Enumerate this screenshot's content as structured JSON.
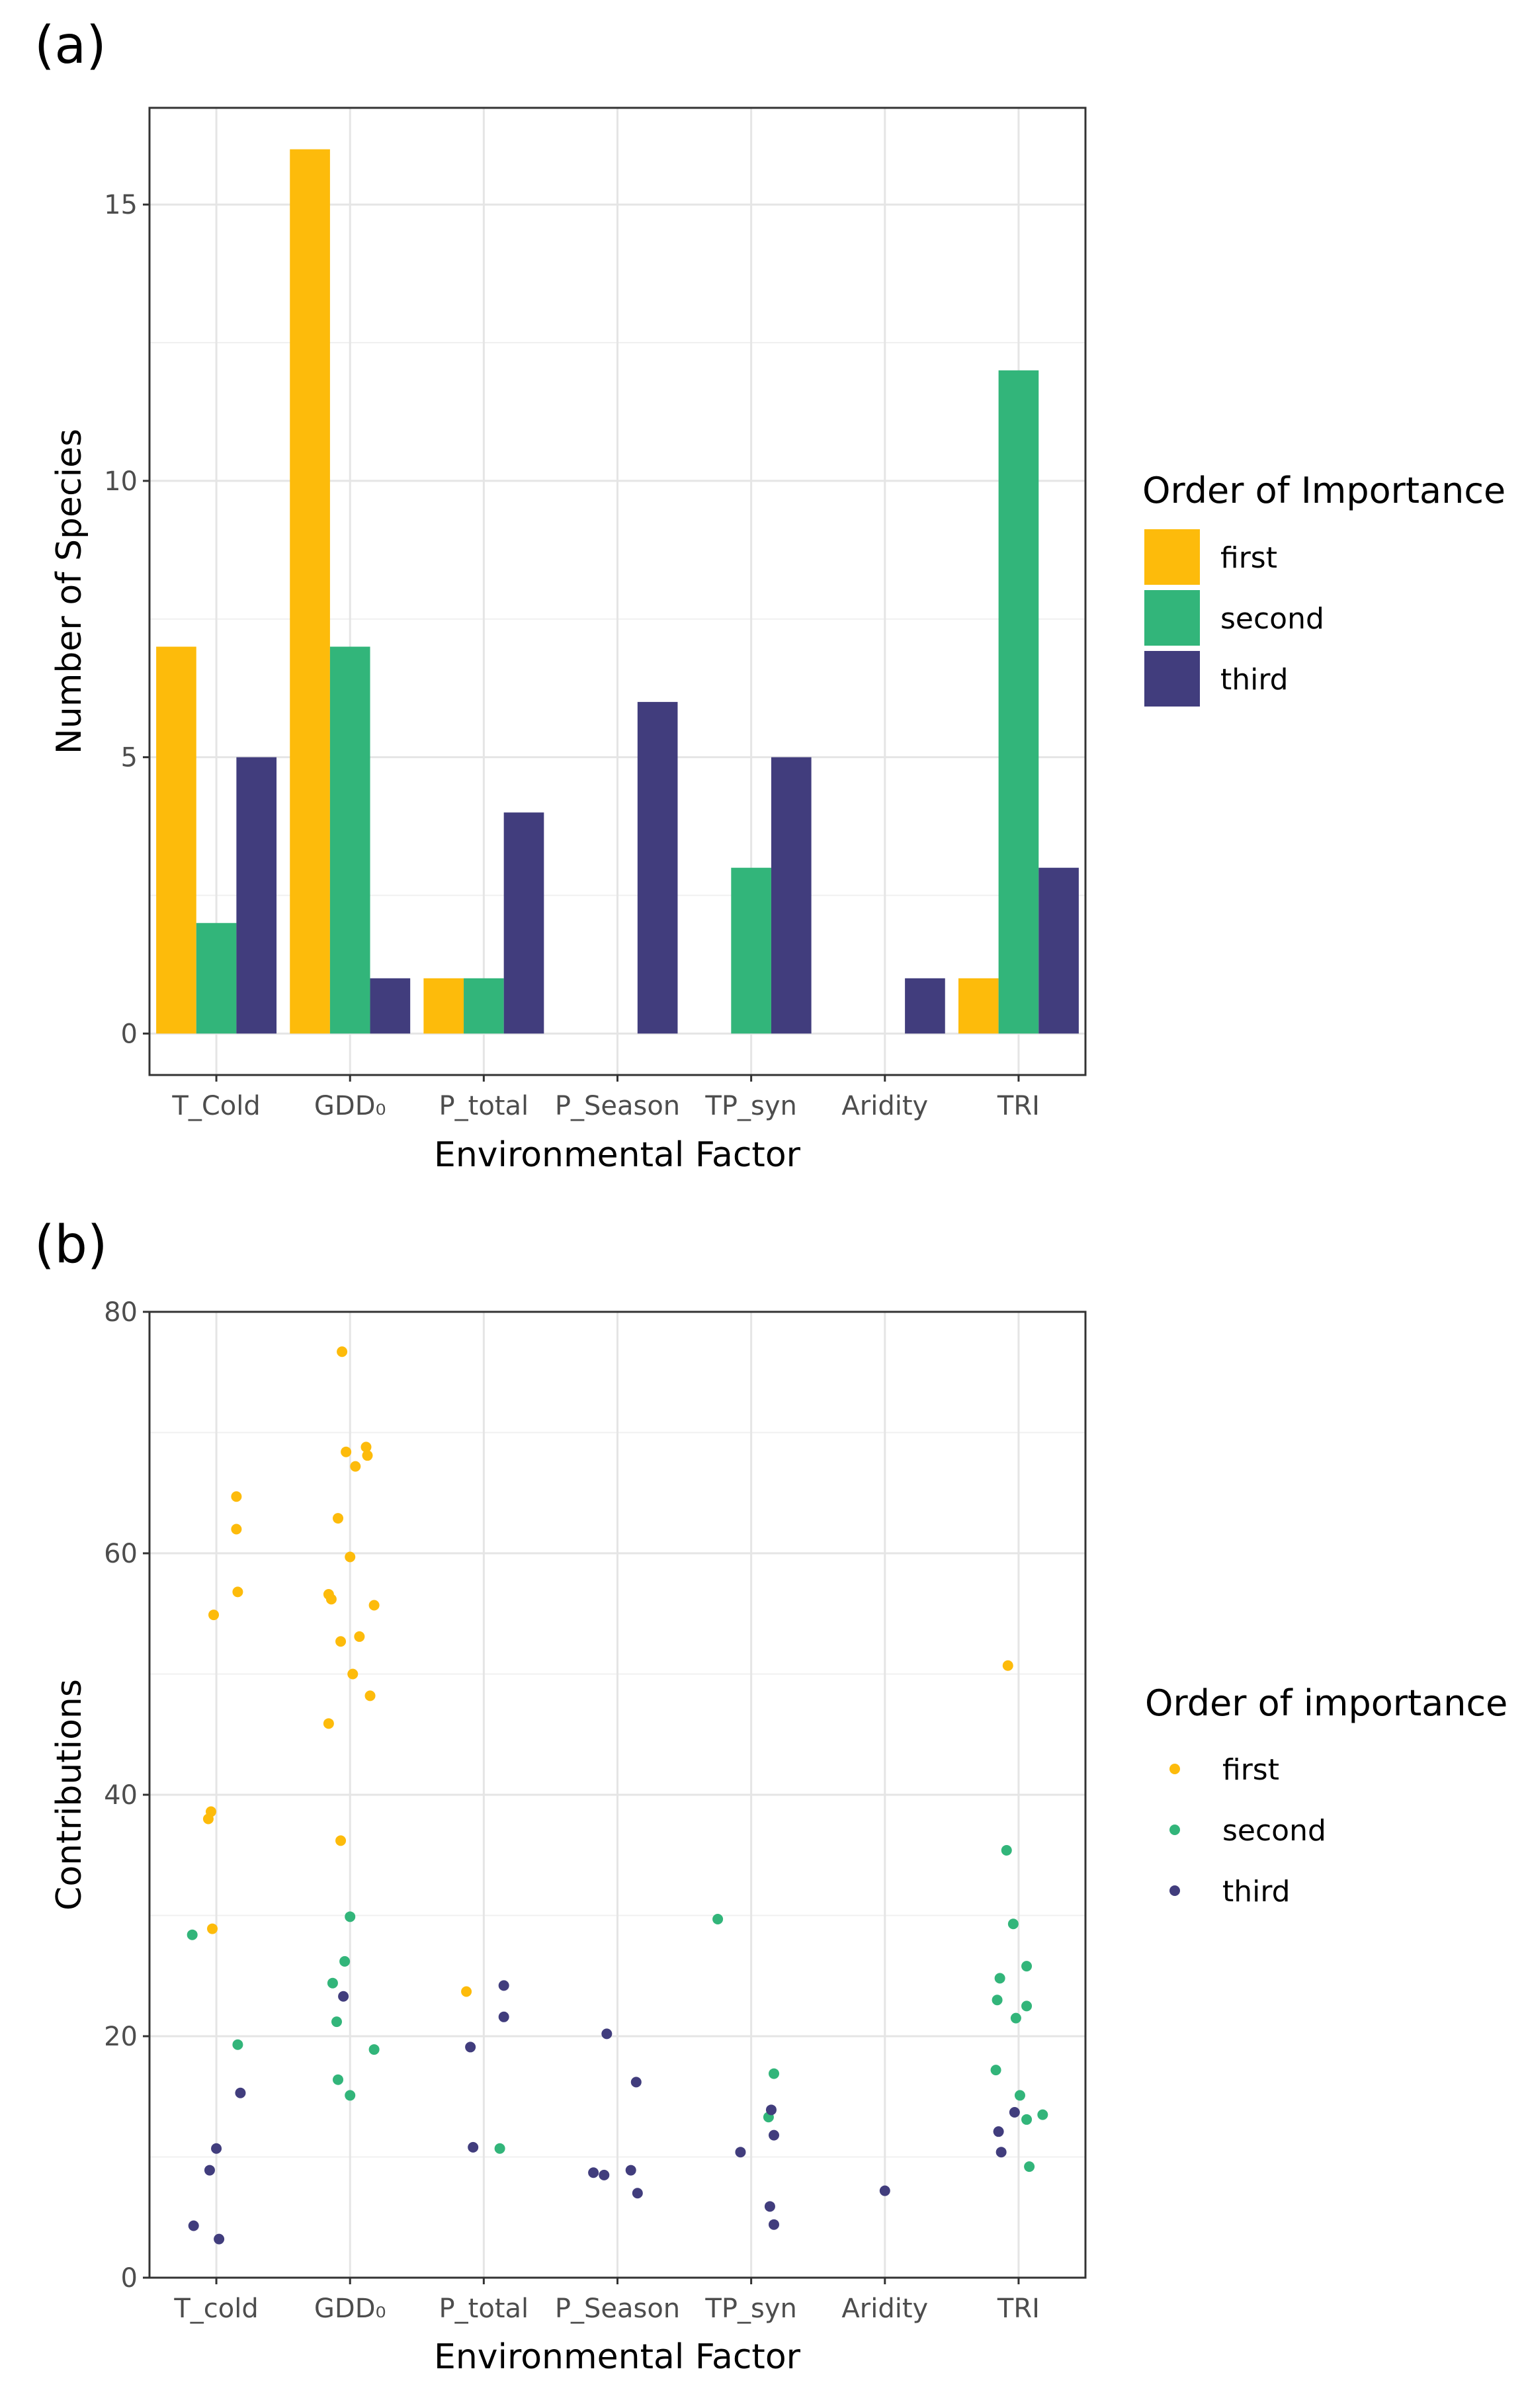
{
  "colors": {
    "first": "#FDBB0B",
    "second": "#32B57A",
    "third": "#413D7D"
  },
  "panel_a": {
    "label": "(a)",
    "legend_title": "Order of Importance",
    "legend_entries": [
      "first",
      "second",
      "third"
    ]
  },
  "panel_b": {
    "label": "(b)",
    "legend_title": "Order of importance",
    "legend_entries": [
      "first",
      "second",
      "third"
    ]
  },
  "chart_data": [
    {
      "type": "bar",
      "title": "(a)",
      "xlabel": "Environmental Factor",
      "ylabel": "Number of Species",
      "categories": [
        "T_Cold",
        "GDD₀",
        "P_total",
        "P_Season",
        "TP_syn",
        "Aridity",
        "TRI"
      ],
      "series": [
        {
          "name": "first",
          "values": [
            7,
            16,
            1,
            0,
            0,
            0,
            1
          ]
        },
        {
          "name": "second",
          "values": [
            2,
            7,
            1,
            0,
            3,
            0,
            12
          ]
        },
        {
          "name": "third",
          "values": [
            5,
            1,
            4,
            6,
            5,
            1,
            3
          ]
        }
      ],
      "ylim": [
        -0.75,
        16.75
      ],
      "yticks": [
        0,
        5,
        10,
        15
      ],
      "grid": true,
      "legend": "right"
    },
    {
      "type": "scatter",
      "title": "(b)",
      "xlabel": "Environmental Factor",
      "ylabel": "Contributions",
      "categories": [
        "T_cold",
        "GDD₀",
        "P_total",
        "P_Season",
        "TP_syn",
        "Aridity",
        "TRI"
      ],
      "ylim": [
        0,
        80
      ],
      "yticks": [
        0,
        20,
        40,
        60,
        80
      ],
      "grid": true,
      "legend": "right",
      "series": [
        {
          "name": "first",
          "points": [
            {
              "x": 1.15,
              "y": 64.7
            },
            {
              "x": 1.15,
              "y": 62.0
            },
            {
              "x": 1.16,
              "y": 56.8
            },
            {
              "x": 0.98,
              "y": 54.9
            },
            {
              "x": 0.96,
              "y": 38.6
            },
            {
              "x": 0.94,
              "y": 38.0
            },
            {
              "x": 0.97,
              "y": 28.9
            },
            {
              "x": 1.94,
              "y": 76.7
            },
            {
              "x": 1.97,
              "y": 68.4
            },
            {
              "x": 2.12,
              "y": 68.8
            },
            {
              "x": 2.13,
              "y": 68.1
            },
            {
              "x": 2.04,
              "y": 67.2
            },
            {
              "x": 1.91,
              "y": 62.9
            },
            {
              "x": 2.0,
              "y": 59.7
            },
            {
              "x": 1.84,
              "y": 56.6
            },
            {
              "x": 1.86,
              "y": 56.2
            },
            {
              "x": 2.18,
              "y": 55.7
            },
            {
              "x": 2.07,
              "y": 53.1
            },
            {
              "x": 1.93,
              "y": 52.7
            },
            {
              "x": 2.02,
              "y": 50.0
            },
            {
              "x": 2.15,
              "y": 48.2
            },
            {
              "x": 1.84,
              "y": 45.9
            },
            {
              "x": 1.93,
              "y": 36.2
            },
            {
              "x": 2.87,
              "y": 23.7
            },
            {
              "x": 6.92,
              "y": 50.7
            }
          ]
        },
        {
          "name": "second",
          "points": [
            {
              "x": 0.82,
              "y": 28.4
            },
            {
              "x": 1.16,
              "y": 19.3
            },
            {
              "x": 2.0,
              "y": 29.9
            },
            {
              "x": 1.96,
              "y": 26.2
            },
            {
              "x": 1.87,
              "y": 24.4
            },
            {
              "x": 1.9,
              "y": 21.2
            },
            {
              "x": 2.18,
              "y": 18.9
            },
            {
              "x": 1.91,
              "y": 16.4
            },
            {
              "x": 2.0,
              "y": 15.1
            },
            {
              "x": 3.12,
              "y": 10.7
            },
            {
              "x": 4.75,
              "y": 29.7
            },
            {
              "x": 5.17,
              "y": 16.9
            },
            {
              "x": 5.13,
              "y": 13.3
            },
            {
              "x": 6.91,
              "y": 35.4
            },
            {
              "x": 6.96,
              "y": 29.3
            },
            {
              "x": 7.06,
              "y": 25.8
            },
            {
              "x": 6.86,
              "y": 24.8
            },
            {
              "x": 6.84,
              "y": 23.0
            },
            {
              "x": 7.06,
              "y": 22.5
            },
            {
              "x": 6.98,
              "y": 21.5
            },
            {
              "x": 6.83,
              "y": 17.2
            },
            {
              "x": 7.01,
              "y": 15.1
            },
            {
              "x": 7.18,
              "y": 13.5
            },
            {
              "x": 7.06,
              "y": 13.1
            },
            {
              "x": 7.08,
              "y": 9.2
            }
          ]
        },
        {
          "name": "third",
          "points": [
            {
              "x": 1.18,
              "y": 15.3
            },
            {
              "x": 1.0,
              "y": 10.7
            },
            {
              "x": 0.95,
              "y": 8.9
            },
            {
              "x": 0.83,
              "y": 4.3
            },
            {
              "x": 1.02,
              "y": 3.2
            },
            {
              "x": 1.95,
              "y": 23.3
            },
            {
              "x": 3.15,
              "y": 24.2
            },
            {
              "x": 3.15,
              "y": 21.6
            },
            {
              "x": 2.9,
              "y": 19.1
            },
            {
              "x": 2.92,
              "y": 10.8
            },
            {
              "x": 3.92,
              "y": 20.2
            },
            {
              "x": 4.14,
              "y": 16.2
            },
            {
              "x": 3.82,
              "y": 8.7
            },
            {
              "x": 3.9,
              "y": 8.5
            },
            {
              "x": 4.1,
              "y": 8.9
            },
            {
              "x": 4.15,
              "y": 7.0
            },
            {
              "x": 5.15,
              "y": 13.9
            },
            {
              "x": 5.17,
              "y": 11.8
            },
            {
              "x": 4.92,
              "y": 10.4
            },
            {
              "x": 5.14,
              "y": 5.9
            },
            {
              "x": 5.17,
              "y": 4.4
            },
            {
              "x": 6.0,
              "y": 7.2
            },
            {
              "x": 6.97,
              "y": 13.7
            },
            {
              "x": 6.85,
              "y": 12.1
            },
            {
              "x": 6.87,
              "y": 10.4
            }
          ]
        }
      ]
    }
  ]
}
